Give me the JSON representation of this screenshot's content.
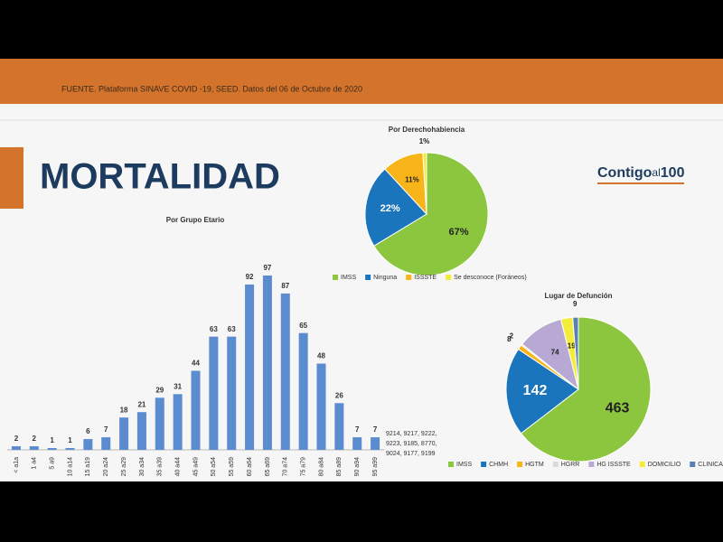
{
  "header": {
    "source": "FUENTE. Plataforma SINAVE COVID -19, SEED. Datos del 06 de Octubre de 2020"
  },
  "title": "MORTALIDAD",
  "logo": {
    "main": "Contigo",
    "small": "al",
    "number": "100"
  },
  "chart_data": [
    {
      "type": "bar",
      "title": "Por Grupo Etario",
      "categories": [
        "< a1a",
        "1 a4",
        "5 a9",
        "10 a14",
        "15 a19",
        "20 a24",
        "25 a29",
        "30 a34",
        "35 a39",
        "40 a44",
        "45 a49",
        "50 a54",
        "55 a59",
        "60 a64",
        "65 a69",
        "70 a74",
        "75 a79",
        "80 a84",
        "85 a89",
        "90 a94",
        "95 a99"
      ],
      "values": [
        2,
        2,
        1,
        1,
        6,
        7,
        18,
        21,
        29,
        31,
        44,
        63,
        63,
        92,
        97,
        87,
        65,
        48,
        26,
        7,
        7
      ],
      "color": "#5b8ccf",
      "annotation": [
        "9214, 9217, 9222,",
        "9223, 9185, 8770,",
        "9024, 9177, 9199"
      ]
    },
    {
      "type": "pie",
      "title": "Por Derechohabiencia",
      "categories": [
        "IMSS",
        "Ninguna",
        "ISSSTE",
        "Se desconoce (Foráneos)"
      ],
      "values": [
        67,
        22,
        11,
        1
      ],
      "value_labels": [
        "67%",
        "22%",
        "11%",
        "1%"
      ],
      "colors": [
        "#8cc63f",
        "#1b75bc",
        "#f7b519",
        "#f4ec3a"
      ]
    },
    {
      "type": "pie",
      "title": "Lugar de Defunción",
      "categories": [
        "IMSS",
        "CHMH",
        "HGTM",
        "HGRR",
        "HG ISSSTE",
        "DOMICILIO",
        "CLINICA PRIVADA"
      ],
      "values": [
        463,
        142,
        8,
        2,
        74,
        19,
        9
      ],
      "colors": [
        "#8cc63f",
        "#1b75bc",
        "#f7b519",
        "#d9d9d9",
        "#b7a9d3",
        "#f4ec3a",
        "#5a7fb8"
      ]
    }
  ]
}
